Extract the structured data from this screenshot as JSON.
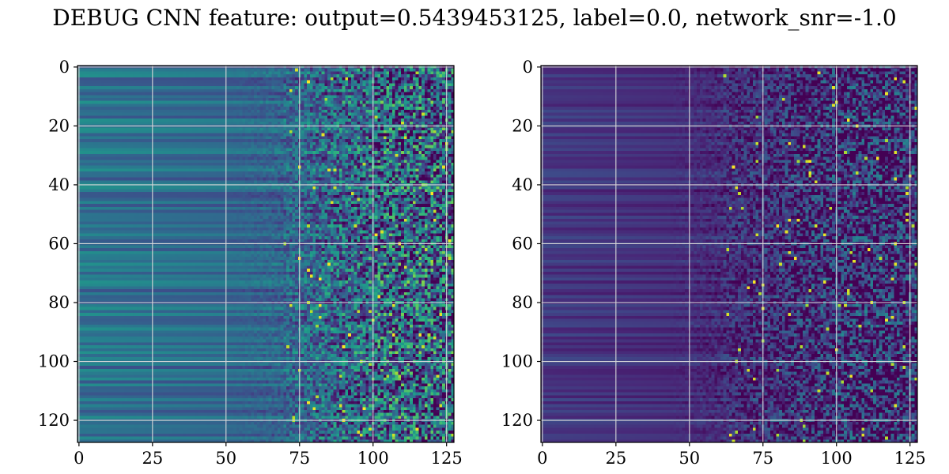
{
  "title": "DEBUG CNN feature: output=0.5439453125, label=0.0, network_snr=-1.0",
  "chart_data": [
    {
      "type": "heatmap",
      "panel": "left",
      "colormap": "viridis",
      "grid": true,
      "rows": 128,
      "cols": 128,
      "xlim": [
        -0.5,
        127.5
      ],
      "ylim": [
        127.5,
        -0.5
      ],
      "xticks": [
        0,
        25,
        50,
        75,
        100,
        125
      ],
      "yticks": [
        0,
        20,
        40,
        60,
        80,
        100,
        120
      ],
      "value_range": [
        0,
        1
      ],
      "base_level": [
        0.38,
        0.26
      ],
      "noise_start_col": 70,
      "noise_spread": 0.45,
      "row_stripe_amplitude": 0.13
    },
    {
      "type": "heatmap",
      "panel": "right",
      "colormap": "viridis",
      "grid": true,
      "rows": 128,
      "cols": 128,
      "xlim": [
        -0.5,
        127.5
      ],
      "ylim": [
        127.5,
        -0.5
      ],
      "xticks": [
        0,
        25,
        50,
        75,
        100,
        125
      ],
      "yticks": [
        0,
        20,
        40,
        60,
        80,
        100,
        120
      ],
      "value_range": [
        0,
        1
      ],
      "base_level": [
        0.16,
        0.07
      ],
      "noise_start_col": 62,
      "noise_spread": 0.34,
      "row_stripe_amplitude": 0.07
    }
  ],
  "colors": {
    "viridis": [
      "#440154",
      "#482878",
      "#3e4a89",
      "#31688e",
      "#26828e",
      "#1f9e89",
      "#35b779",
      "#6ece58",
      "#b5de2b",
      "#fde725"
    ],
    "grid": "#d8d8d8",
    "axes": "#000000"
  }
}
